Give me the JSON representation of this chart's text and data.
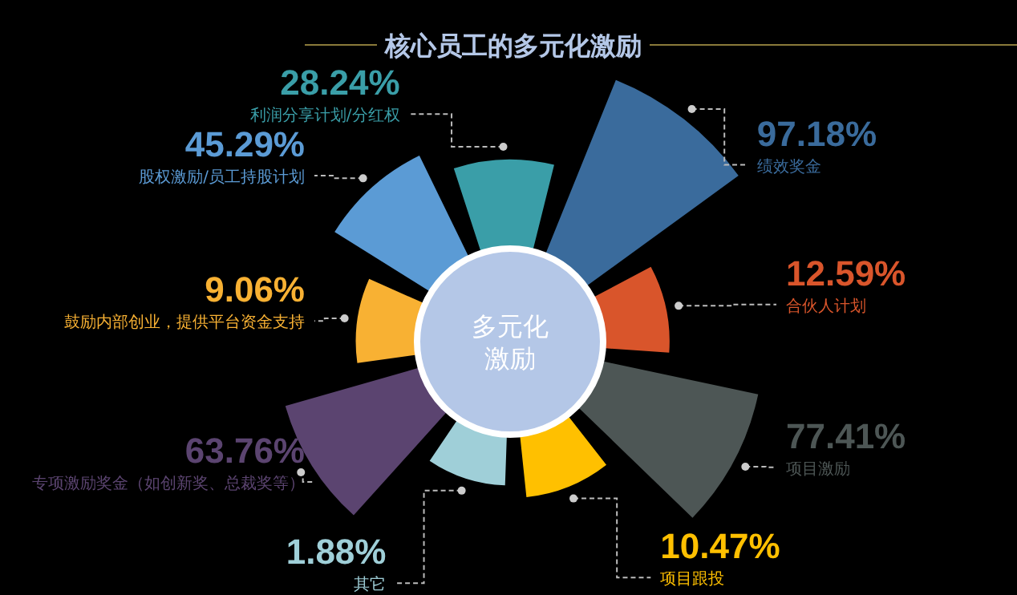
{
  "chart_data": {
    "type": "other",
    "title": "核心员工的多元化激励",
    "annotations": [
      "多元化",
      "激励"
    ],
    "categories": [
      "利润分享计划/分红权",
      "绩效奖金",
      "合伙人计划",
      "项目激励",
      "项目跟投",
      "其它",
      "专项激励奖金（如创新奖、总裁奖等）",
      "鼓励内部创业，提供平台资金支持",
      "股权激励/员工持股计划"
    ],
    "values": [
      28.24,
      97.18,
      12.59,
      77.41,
      10.47,
      1.88,
      63.76,
      9.06,
      45.29
    ],
    "value_labels": [
      "28.24%",
      "97.18%",
      "12.59%",
      "77.41%",
      "10.47%",
      "1.88%",
      "63.76%",
      "9.06%",
      "45.29%"
    ],
    "colors": [
      "#3a9ea8",
      "#3a6b9c",
      "#d9552b",
      "#4d5655",
      "#ffc000",
      "#9fcfd8",
      "#5b4470",
      "#f8b133",
      "#5b9bd5"
    ]
  }
}
